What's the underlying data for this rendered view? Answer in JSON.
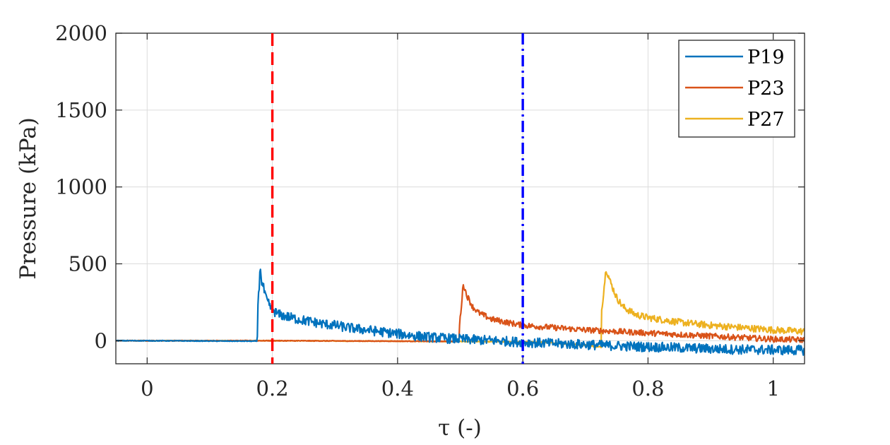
{
  "chart_data": {
    "type": "line",
    "xlabel": "τ (-)",
    "ylabel": "Pressure (kPa)",
    "xlim": [
      -0.05,
      1.05
    ],
    "ylim": [
      -150,
      2000
    ],
    "xticks": [
      0,
      0.2,
      0.4,
      0.6,
      0.8,
      1
    ],
    "xtick_labels": [
      "0",
      "0.2",
      "0.4",
      "0.6",
      "0.8",
      "1"
    ],
    "yticks": [
      0,
      500,
      1000,
      1500,
      2000
    ],
    "ytick_labels": [
      "0",
      "500",
      "1000",
      "1500",
      "2000"
    ],
    "grid": true,
    "legend_position": "top-right",
    "vlines": [
      {
        "x": 0.2,
        "style": "dashed",
        "color": "#ff0000"
      },
      {
        "x": 0.6,
        "style": "dash-dot",
        "color": "#0000ff"
      }
    ],
    "series": [
      {
        "name": "P19",
        "color": "#0072bd",
        "x": [
          -0.05,
          0.0,
          0.1,
          0.176,
          0.177,
          0.181,
          0.183,
          0.186,
          0.19,
          0.195,
          0.2,
          0.21,
          0.22,
          0.24,
          0.26,
          0.28,
          0.3,
          0.32,
          0.35,
          0.38,
          0.4,
          0.43,
          0.46,
          0.5,
          0.53,
          0.56,
          0.6,
          0.63,
          0.66,
          0.7,
          0.73,
          0.76,
          0.8,
          0.84,
          0.88,
          0.92,
          0.96,
          1.0,
          1.05
        ],
        "y": [
          0,
          0,
          -2,
          -3,
          250,
          480,
          380,
          340,
          270,
          230,
          200,
          170,
          160,
          140,
          125,
          110,
          100,
          85,
          70,
          55,
          45,
          30,
          20,
          10,
          5,
          0,
          -10,
          -15,
          -20,
          -25,
          -30,
          -35,
          -40,
          -45,
          -50,
          -55,
          -58,
          -60,
          -62
        ],
        "noise": 20
      },
      {
        "name": "P23",
        "color": "#d95319",
        "x": [
          -0.05,
          0.0,
          0.2,
          0.4,
          0.498,
          0.499,
          0.505,
          0.51,
          0.52,
          0.53,
          0.55,
          0.58,
          0.6,
          0.65,
          0.7,
          0.75,
          0.8,
          0.85,
          0.9,
          0.95,
          1.0,
          1.05
        ],
        "y": [
          0,
          0,
          0,
          -3,
          -5,
          100,
          370,
          300,
          220,
          180,
          140,
          115,
          100,
          85,
          70,
          60,
          50,
          40,
          30,
          20,
          10,
          5
        ],
        "noise": 12
      },
      {
        "name": "P27",
        "color": "#edb120",
        "x": [
          -0.05,
          0.0,
          0.2,
          0.4,
          0.6,
          0.65,
          0.7,
          0.72,
          0.725,
          0.726,
          0.733,
          0.74,
          0.75,
          0.76,
          0.78,
          0.8,
          0.85,
          0.9,
          0.95,
          1.0,
          1.05
        ],
        "y": [
          0,
          0,
          0,
          -3,
          -8,
          -15,
          -28,
          -42,
          -40,
          200,
          470,
          380,
          280,
          220,
          170,
          150,
          120,
          100,
          85,
          70,
          60
        ],
        "noise": 14
      }
    ]
  }
}
